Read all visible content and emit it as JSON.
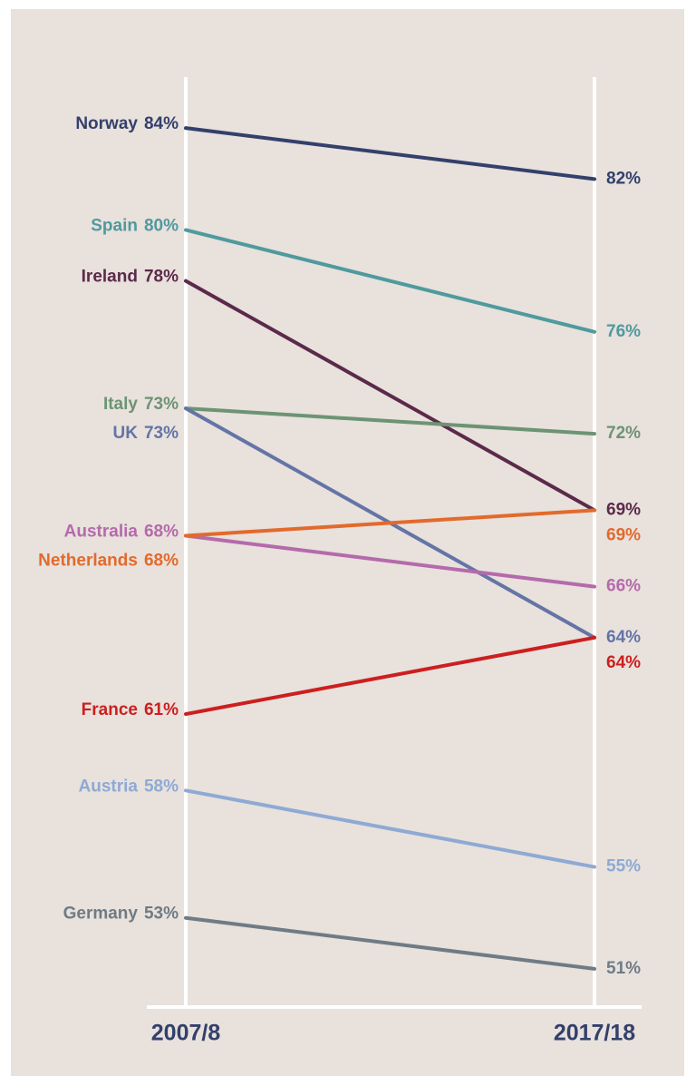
{
  "chart_data": {
    "type": "slope",
    "categories": [
      "2007/8",
      "2017/18"
    ],
    "ylim": [
      49.5,
      86
    ],
    "series": [
      {
        "name": "Norway",
        "color": "#33406b",
        "values": [
          84,
          82
        ],
        "value_labels": [
          "84%",
          "82%"
        ]
      },
      {
        "name": "Spain",
        "color": "#4f9a9e",
        "values": [
          80,
          76
        ],
        "value_labels": [
          "80%",
          "76%"
        ]
      },
      {
        "name": "Ireland",
        "color": "#5b2a4a",
        "values": [
          78,
          69
        ],
        "value_labels": [
          "78%",
          "69%"
        ]
      },
      {
        "name": "Italy",
        "color": "#6c9474",
        "values": [
          73,
          72
        ],
        "value_labels": [
          "73%",
          "72%"
        ]
      },
      {
        "name": "UK",
        "color": "#6474a6",
        "values": [
          73,
          64
        ],
        "value_labels": [
          "73%",
          "64%"
        ]
      },
      {
        "name": "Australia",
        "color": "#b56aab",
        "values": [
          68,
          66
        ],
        "value_labels": [
          "68%",
          "66%"
        ]
      },
      {
        "name": "Netherlands",
        "color": "#e26a2c",
        "values": [
          68,
          69
        ],
        "value_labels": [
          "68%",
          "69%"
        ]
      },
      {
        "name": "France",
        "color": "#cc1f1f",
        "values": [
          61,
          64
        ],
        "value_labels": [
          "61%",
          "64%"
        ]
      },
      {
        "name": "Austria",
        "color": "#8eaad4",
        "values": [
          58,
          55
        ],
        "value_labels": [
          "58%",
          "55%"
        ]
      },
      {
        "name": "Germany",
        "color": "#6f7b85",
        "values": [
          53,
          51
        ],
        "value_labels": [
          "53%",
          "51%"
        ]
      }
    ]
  }
}
